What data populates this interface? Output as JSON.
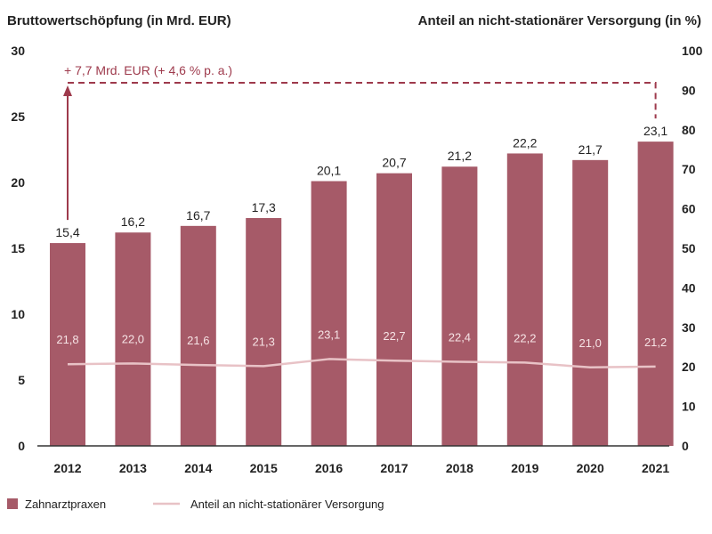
{
  "chart_data": {
    "type": "bar",
    "left_axis_title": "Bruttowertschöpfung (in Mrd. EUR)",
    "right_axis_title": "Anteil an nicht-stationärer Versorgung (in %)",
    "left_ylim": [
      0,
      30
    ],
    "left_ticks": [
      "0",
      "5",
      "10",
      "15",
      "20",
      "25",
      "30"
    ],
    "right_ylim": [
      0,
      100
    ],
    "right_ticks": [
      "0",
      "10",
      "20",
      "30",
      "40",
      "50",
      "60",
      "70",
      "80",
      "90",
      "100"
    ],
    "categories": [
      "2012",
      "2013",
      "2014",
      "2015",
      "2016",
      "2017",
      "2018",
      "2019",
      "2020",
      "2021"
    ],
    "series": [
      {
        "name": "Zahnarztpraxen",
        "type": "bar",
        "axis": "left",
        "color": "#a65a68",
        "values": [
          15.4,
          16.2,
          16.7,
          17.3,
          20.1,
          20.7,
          21.2,
          22.2,
          21.7,
          23.1
        ],
        "labels": [
          "15,4",
          "16,2",
          "16,7",
          "17,3",
          "20,1",
          "20,7",
          "21,2",
          "22,2",
          "21,7",
          "23,1"
        ]
      },
      {
        "name": "Anteil an nicht-stationärer Versorgung",
        "type": "line",
        "axis": "right",
        "color": "#e8c2c6",
        "values": [
          21.8,
          22.0,
          21.6,
          21.3,
          23.1,
          22.7,
          22.4,
          22.2,
          21.0,
          21.2
        ],
        "labels": [
          "21,8",
          "22,0",
          "21,6",
          "21,3",
          "23,1",
          "22,7",
          "22,4",
          "22,2",
          "21,0",
          "21,2"
        ]
      }
    ],
    "annotation": "+ 7,7 Mrd. EUR (+ 4,6 % p. a.)",
    "annotation_color": "#9e3a4c",
    "legend_placement": "bottom-left",
    "grid": false
  }
}
